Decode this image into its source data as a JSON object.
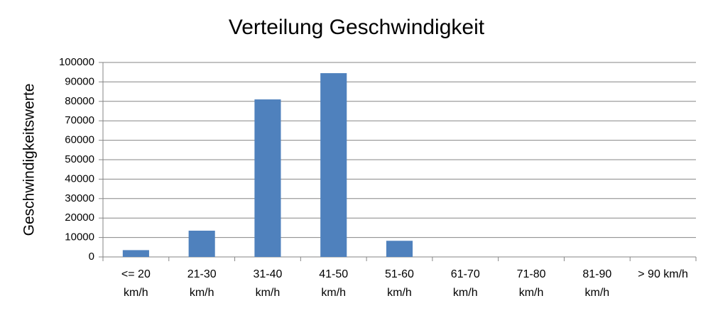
{
  "chart_data": {
    "type": "bar",
    "title": "Verteilung Geschwindigkeit",
    "y_label": "Geschwindigkeitswerte",
    "categories": [
      "<= 20 km/h",
      "21-30 km/h",
      "31-40 km/h",
      "41-50 km/h",
      "51-60 km/h",
      "61-70 km/h",
      "71-80 km/h",
      "81-90 km/h",
      "> 90 km/h"
    ],
    "values": [
      3500,
      13500,
      81000,
      94500,
      8300,
      0,
      0,
      0,
      0
    ],
    "color": "#4f81bd",
    "ylim": [
      0,
      100000
    ],
    "yticks": [
      0,
      10000,
      20000,
      30000,
      40000,
      50000,
      60000,
      70000,
      80000,
      90000,
      100000
    ],
    "grid": true
  }
}
